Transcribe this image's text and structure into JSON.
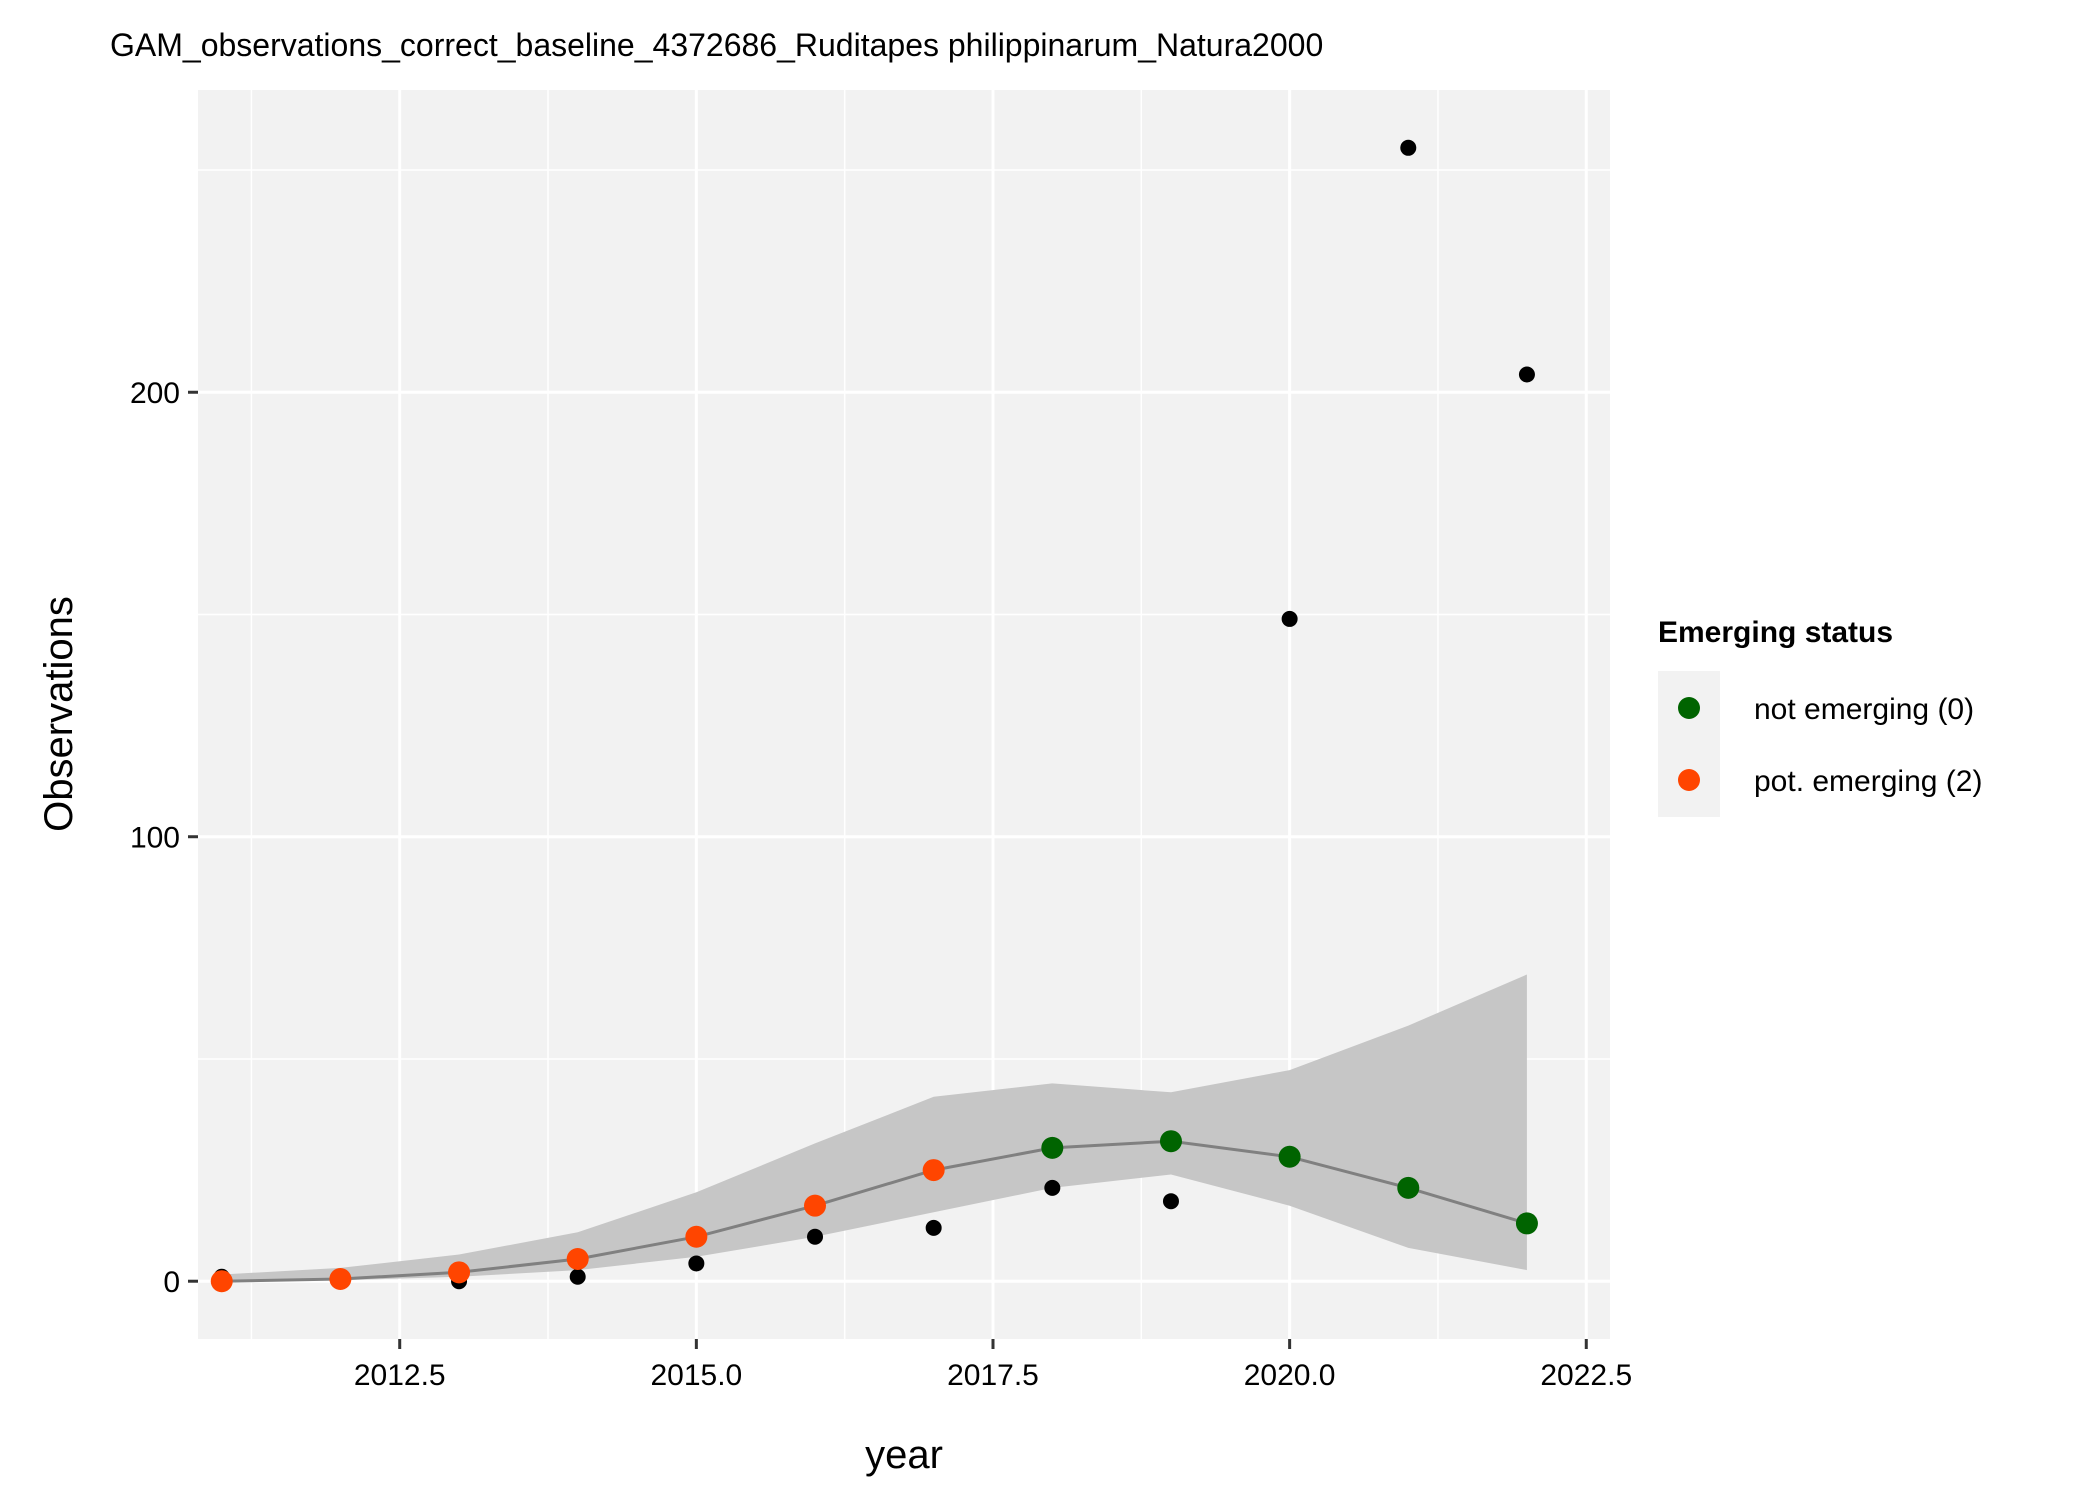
{
  "chart_data": {
    "type": "scatter",
    "title": "GAM_observations_correct_baseline_4372686_Ruditapes philippinarum_Natura2000",
    "xlabel": "year",
    "ylabel": "Observations",
    "xlim": [
      2010.8,
      2022.7
    ],
    "ylim": [
      -13,
      268
    ],
    "x_ticks": [
      2012.5,
      2015.0,
      2017.5,
      2020.0,
      2022.5
    ],
    "x_tick_labels": [
      "2012.5",
      "2015.0",
      "2017.5",
      "2020.0",
      "2022.5"
    ],
    "y_ticks": [
      0,
      100,
      200
    ],
    "y_tick_labels": [
      "0",
      "100",
      "200"
    ],
    "grid": true,
    "legend_position": "right",
    "observations": {
      "x": [
        2011,
        2012,
        2013,
        2014,
        2015,
        2016,
        2017,
        2018,
        2019,
        2020,
        2021,
        2022
      ],
      "y": [
        1,
        0,
        0,
        1,
        4,
        10,
        12,
        21,
        18,
        149,
        255,
        204
      ],
      "color": "#000000"
    },
    "gam_fit": {
      "x": [
        2011,
        2012,
        2013,
        2014,
        2015,
        2016,
        2017,
        2018,
        2019,
        2020,
        2021,
        2022
      ],
      "y": [
        0,
        0.5,
        2,
        5,
        10,
        17,
        25,
        30,
        31.5,
        28,
        21,
        13
      ],
      "lower": [
        0,
        0.2,
        1,
        2.5,
        5.5,
        10,
        15.5,
        21,
        24,
        17,
        7.5,
        2.5
      ],
      "upper": [
        1.5,
        3,
        6,
        11,
        20,
        31,
        41.5,
        44.5,
        42.5,
        47.5,
        57.5,
        69
      ],
      "line_color": "#808080",
      "band_color": "#c6c6c6"
    },
    "status_points": {
      "x": [
        2011,
        2012,
        2013,
        2014,
        2015,
        2016,
        2017,
        2018,
        2019,
        2020,
        2021,
        2022
      ],
      "y": [
        0,
        0.5,
        2,
        5,
        10,
        17,
        25,
        30,
        31.5,
        28,
        21,
        13
      ],
      "status": [
        2,
        2,
        2,
        2,
        2,
        2,
        2,
        0,
        0,
        0,
        0,
        0
      ]
    },
    "legend": {
      "title": "Emerging status",
      "entries": [
        {
          "status": 0,
          "label": "not emerging (0)",
          "color": "#006400"
        },
        {
          "status": 2,
          "label": "pot. emerging (2)",
          "color": "#ff4500"
        }
      ]
    }
  }
}
